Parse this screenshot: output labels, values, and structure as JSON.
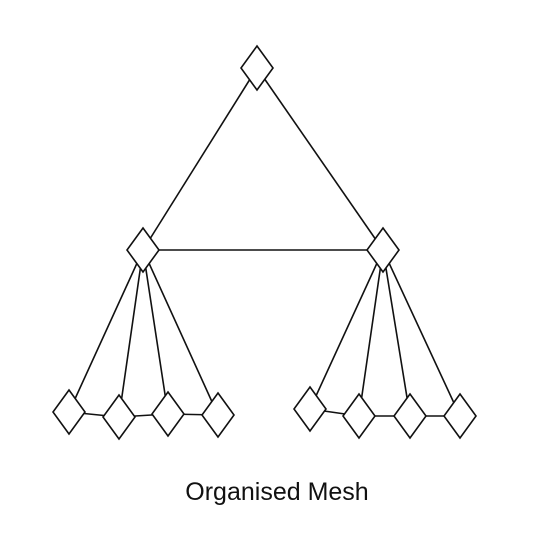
{
  "caption": "Organised Mesh",
  "colors": {
    "stroke": "#111111",
    "node_fill": "#ffffff",
    "background": "#ffffff"
  }
}
